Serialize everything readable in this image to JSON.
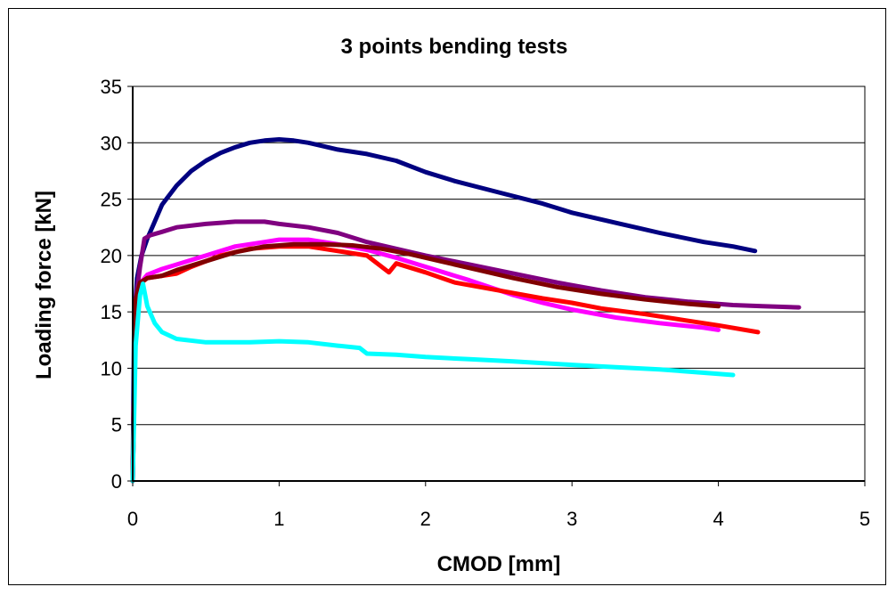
{
  "chart_data": {
    "type": "line",
    "title": "3 points bending tests",
    "xlabel": "CMOD  [mm]",
    "ylabel": "Loading force [kN]",
    "xlim": [
      0,
      5
    ],
    "ylim": [
      0,
      35
    ],
    "xticks": [
      "0",
      "1",
      "2",
      "3",
      "4",
      "5"
    ],
    "yticks": [
      "0",
      "5",
      "10",
      "15",
      "20",
      "25",
      "30",
      "35"
    ],
    "grid": "horizontal",
    "legend": "none",
    "series": [
      {
        "color": "#000080",
        "x": [
          0,
          0.01,
          0.03,
          0.06,
          0.1,
          0.15,
          0.2,
          0.3,
          0.4,
          0.5,
          0.6,
          0.7,
          0.8,
          0.9,
          1.0,
          1.1,
          1.2,
          1.3,
          1.4,
          1.5,
          1.6,
          1.8,
          2.0,
          2.2,
          2.5,
          2.8,
          3.0,
          3.3,
          3.6,
          3.9,
          4.1,
          4.25
        ],
        "y": [
          0,
          14,
          18,
          20,
          21.5,
          23,
          24.5,
          26.2,
          27.5,
          28.4,
          29.1,
          29.6,
          30.0,
          30.2,
          30.3,
          30.2,
          30.0,
          29.7,
          29.4,
          29.2,
          29.0,
          28.4,
          27.4,
          26.6,
          25.6,
          24.6,
          23.8,
          22.9,
          22.0,
          21.2,
          20.8,
          20.4
        ]
      },
      {
        "color": "#800080",
        "x": [
          0,
          0.02,
          0.05,
          0.08,
          0.12,
          0.2,
          0.3,
          0.5,
          0.7,
          0.9,
          1.0,
          1.2,
          1.4,
          1.6,
          1.8,
          2.0,
          2.3,
          2.6,
          2.9,
          3.2,
          3.5,
          3.8,
          4.1,
          4.3,
          4.55
        ],
        "y": [
          0,
          16,
          19,
          21.5,
          21.8,
          22.1,
          22.5,
          22.8,
          23.0,
          23.0,
          22.8,
          22.5,
          22.0,
          21.2,
          20.6,
          20.0,
          19.2,
          18.4,
          17.6,
          16.9,
          16.3,
          15.9,
          15.6,
          15.5,
          15.4
        ]
      },
      {
        "color": "#ff00ff",
        "x": [
          0,
          0.02,
          0.05,
          0.1,
          0.2,
          0.3,
          0.5,
          0.7,
          0.9,
          1.0,
          1.2,
          1.4,
          1.6,
          1.8,
          2.0,
          2.3,
          2.6,
          2.8,
          3.0,
          3.3,
          3.6,
          3.9,
          4.0
        ],
        "y": [
          0,
          15,
          17.5,
          18.3,
          18.8,
          19.2,
          20.0,
          20.8,
          21.2,
          21.4,
          21.4,
          21.0,
          20.5,
          19.8,
          19.0,
          17.8,
          16.5,
          15.8,
          15.2,
          14.5,
          14.0,
          13.6,
          13.4
        ]
      },
      {
        "color": "#ff0000",
        "x": [
          0,
          0.02,
          0.05,
          0.1,
          0.2,
          0.3,
          0.4,
          0.6,
          0.8,
          1.0,
          1.2,
          1.4,
          1.6,
          1.75,
          1.8,
          2.0,
          2.2,
          2.5,
          2.8,
          3.0,
          3.2,
          3.5,
          3.8,
          4.0,
          4.27
        ],
        "y": [
          0,
          16,
          17.5,
          18.0,
          18.2,
          18.4,
          19.0,
          20.0,
          20.6,
          20.8,
          20.8,
          20.4,
          20.0,
          18.5,
          19.3,
          18.5,
          17.6,
          16.9,
          16.2,
          15.8,
          15.3,
          14.8,
          14.2,
          13.8,
          13.2
        ]
      },
      {
        "color": "#800000",
        "x": [
          0,
          0.02,
          0.05,
          0.1,
          0.2,
          0.3,
          0.5,
          0.7,
          0.9,
          1.1,
          1.3,
          1.5,
          1.7,
          1.9,
          2.1,
          2.3,
          2.6,
          2.9,
          3.2,
          3.5,
          3.8,
          4.0
        ],
        "y": [
          0,
          16,
          17.6,
          18.0,
          18.2,
          18.7,
          19.5,
          20.3,
          20.8,
          21.0,
          21.0,
          20.9,
          20.6,
          20.1,
          19.5,
          18.9,
          18.0,
          17.2,
          16.6,
          16.1,
          15.7,
          15.5
        ]
      },
      {
        "color": "#00ffff",
        "x": [
          0,
          0.02,
          0.05,
          0.07,
          0.1,
          0.15,
          0.2,
          0.3,
          0.5,
          0.8,
          1.0,
          1.2,
          1.4,
          1.55,
          1.6,
          1.8,
          2.0,
          2.3,
          2.6,
          3.0,
          3.3,
          3.6,
          3.9,
          4.1
        ],
        "y": [
          0,
          12,
          16.5,
          17.5,
          15.5,
          14.0,
          13.2,
          12.6,
          12.3,
          12.3,
          12.4,
          12.3,
          12.0,
          11.8,
          11.3,
          11.2,
          11.0,
          10.8,
          10.6,
          10.3,
          10.1,
          9.9,
          9.6,
          9.4
        ]
      }
    ]
  }
}
